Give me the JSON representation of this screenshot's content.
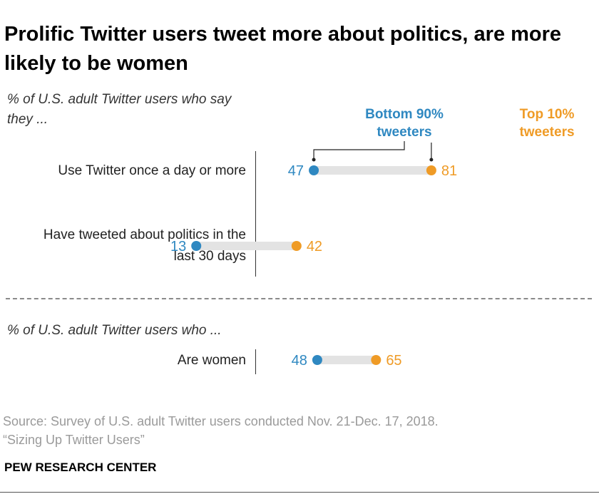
{
  "title": "Prolific Twitter users tweet more about politics, are more likely to be women",
  "note1": "% of U.S. adult Twitter users who say they ...",
  "note2": "% of U.S. adult Twitter users who ...",
  "source_line1": "Source: Survey of U.S. adult Twitter users conducted Nov. 21-Dec. 17, 2018.",
  "source_line2": "“Sizing Up Twitter Users”",
  "brand": "PEW RESEARCH CENTER",
  "colors": {
    "bottom": "#2f88c1",
    "top": "#ef9b26",
    "bar": "#e3e3e3"
  },
  "chart_data": {
    "type": "dot-plot",
    "unit": "%",
    "series": [
      {
        "name": "Bottom 90% tweeters",
        "key": "bottom"
      },
      {
        "name": "Top 10% tweeters",
        "key": "top"
      }
    ],
    "rows": [
      {
        "label": "Use Twitter once a day or more",
        "bottom": 47,
        "top": 81
      },
      {
        "label": "Have tweeted about politics in the last 30 days",
        "bottom": 13,
        "top": 42
      },
      {
        "label": "Are women",
        "bottom": 48,
        "top": 65
      }
    ]
  }
}
